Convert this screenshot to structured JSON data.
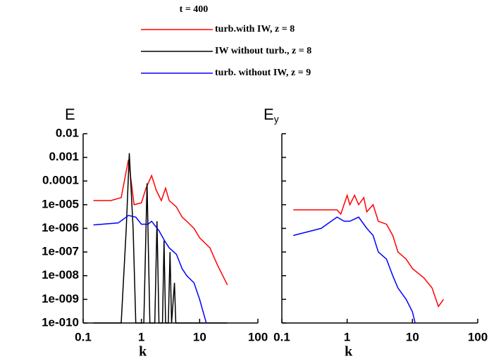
{
  "title": "t = 400",
  "chart_data": [
    {
      "type": "line",
      "y_label": "E",
      "x_label": "k",
      "log_x": true,
      "log_y": true,
      "xlim": [
        0.1,
        100
      ],
      "ylim": [
        1e-10,
        0.01
      ],
      "xticks": [
        0.1,
        1,
        10,
        100
      ],
      "yticks": [
        0.01,
        0.001,
        0.0001,
        {
          "value": 1e-05,
          "label": "1e-005"
        },
        {
          "value": 1e-06,
          "label": "1e-006"
        },
        {
          "value": 1e-07,
          "label": "1e-007"
        },
        {
          "value": 1e-08,
          "label": "1e-008"
        },
        {
          "value": 1e-09,
          "label": "1e-009"
        },
        {
          "value": 1e-10,
          "label": "1e-010"
        }
      ],
      "series": [
        {
          "name": "turb.with IW, z = 8",
          "color": "#ff0000",
          "x": [
            0.15,
            0.3,
            0.45,
            0.6,
            0.75,
            1.0,
            1.2,
            1.5,
            1.8,
            2.2,
            2.6,
            3,
            4,
            5,
            6,
            8,
            10,
            15,
            20,
            25,
            30
          ],
          "values": [
            1.5e-05,
            1.5e-05,
            2e-05,
            0.0008,
            1e-05,
            1.2e-05,
            5e-05,
            0.00017,
            4e-05,
            1.5e-05,
            5e-05,
            1.5e-05,
            8e-06,
            3e-06,
            2e-06,
            1e-06,
            4e-07,
            1.5e-07,
            3e-08,
            1e-08,
            4e-09
          ]
        },
        {
          "name": "IW without turb., z = 8",
          "color": "#000000",
          "x": [
            0.15,
            0.45,
            0.55,
            0.62,
            0.72,
            0.8,
            1.1,
            1.25,
            1.4,
            1.7,
            1.85,
            2.0,
            2.3,
            2.45,
            2.6,
            2.9,
            3.1,
            3.3,
            3.7,
            3.9,
            4.5,
            30
          ],
          "values": [
            1e-10,
            1e-10,
            1e-06,
            0.0015,
            1e-06,
            1e-10,
            1e-10,
            8e-05,
            1e-10,
            1e-10,
            2e-06,
            1e-10,
            1e-10,
            3e-07,
            1e-10,
            1e-10,
            1e-07,
            1e-10,
            5e-09,
            1e-10,
            1e-10,
            1e-10
          ]
        },
        {
          "name": "turb. without IW, z = 9",
          "color": "#0000ff",
          "x": [
            0.15,
            0.4,
            0.6,
            0.8,
            1.0,
            1.3,
            1.5,
            2,
            2.5,
            3,
            4,
            5,
            6,
            8,
            10,
            12,
            13
          ],
          "values": [
            1.4e-06,
            1.7e-06,
            3.5e-06,
            3e-06,
            1.5e-06,
            1.5e-06,
            2e-06,
            8e-07,
            3e-07,
            1.5e-07,
            8e-08,
            2e-08,
            1e-08,
            5e-09,
            1e-09,
            2e-10,
            1e-10
          ]
        }
      ]
    },
    {
      "type": "line",
      "y_label": "E",
      "y_label_subscript": "y",
      "x_label": "k",
      "log_x": true,
      "log_y": true,
      "xlim": [
        0.1,
        100
      ],
      "ylim": [
        1e-10,
        0.01
      ],
      "xticks": [
        0.1,
        1,
        10,
        100
      ],
      "yticks": [
        0.01,
        0.001,
        0.0001,
        1e-05,
        1e-06,
        1e-07,
        1e-08,
        1e-09,
        1e-10
      ],
      "series": [
        {
          "color": "#ff0000",
          "x": [
            0.15,
            0.5,
            0.7,
            0.8,
            1.0,
            1.1,
            1.3,
            1.5,
            1.8,
            2,
            2.5,
            3,
            4,
            5,
            6,
            8,
            10,
            15,
            20,
            25,
            30
          ],
          "values": [
            6e-06,
            6e-06,
            6e-06,
            4e-06,
            2.5e-05,
            1e-05,
            2.5e-05,
            1e-05,
            2e-05,
            5e-06,
            1e-05,
            2e-06,
            1.5e-06,
            5e-07,
            1e-07,
            5e-08,
            2e-08,
            8e-09,
            3e-09,
            5e-10,
            1e-09
          ]
        },
        {
          "color": "#0000ff",
          "x": [
            0.15,
            0.4,
            0.7,
            0.9,
            1.1,
            1.5,
            2,
            2.5,
            3,
            4,
            5,
            6,
            8,
            10,
            11
          ],
          "values": [
            5e-07,
            1e-06,
            3e-06,
            2e-06,
            2e-06,
            3e-06,
            1e-06,
            5e-07,
            1e-07,
            5e-08,
            1e-08,
            3e-09,
            1e-09,
            3e-10,
            1e-10
          ]
        }
      ]
    }
  ]
}
